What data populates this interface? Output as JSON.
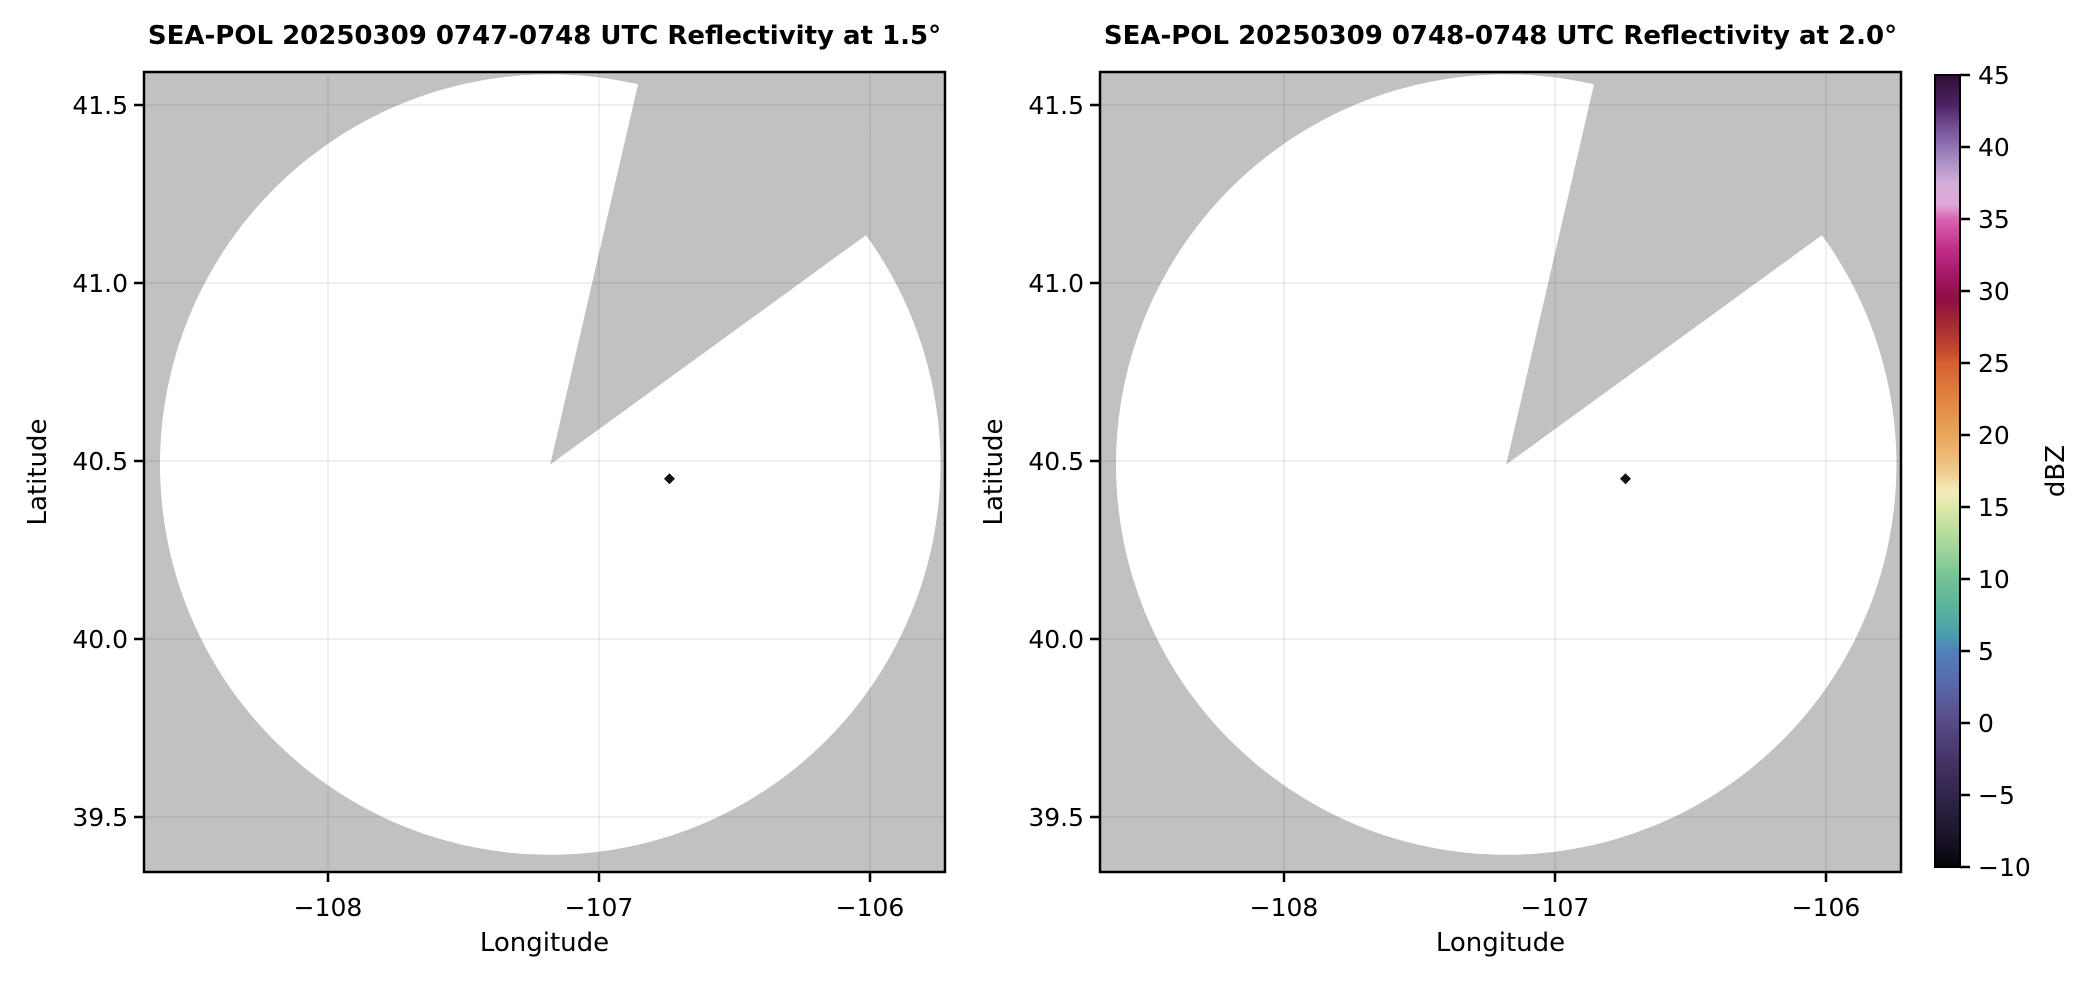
{
  "figure": {
    "background": "#ffffff",
    "panel_bg": "#c1c1c1",
    "scan_fill": "#ffffff",
    "frame_color": "#000000",
    "grid_color": "rgba(0,0,0,0.08)",
    "marker_color": "#111111"
  },
  "chart_data": {
    "type": "radar_ppi_reflectivity",
    "panels": [
      {
        "title": "SEA-POL 20250309 0747-0748 UTC Reflectivity at 1.5°",
        "elevation_deg": 1.5,
        "xlabel": "Longitude",
        "ylabel": "Latitude",
        "xlim": [
          -108.68,
          -105.72
        ],
        "ylim": [
          39.35,
          41.59
        ],
        "x_tick_labels": [
          "−108",
          "−107",
          "−106"
        ],
        "x_tick_values": [
          -108,
          -107,
          -106
        ],
        "y_tick_labels": [
          "41.5",
          "41.0",
          "40.5",
          "40.0",
          "39.5"
        ],
        "y_tick_values": [
          41.5,
          41.0,
          40.5,
          40.0,
          39.5
        ],
        "radar_center": {
          "lon": -107.18,
          "lat": 40.49
        },
        "scan_radius_deg": {
          "lon": 1.44,
          "lat": 1.09
        },
        "blocked_sector_azimuth_deg": [
          13,
          54
        ],
        "echo_marker": {
          "lon": -106.74,
          "lat": 40.45,
          "shape": "diamond",
          "color": "#111111"
        }
      },
      {
        "title": "SEA-POL 20250309 0748-0748 UTC Reflectivity at 2.0°",
        "elevation_deg": 2.0,
        "xlabel": "Longitude",
        "ylabel": "Latitude",
        "xlim": [
          -108.68,
          -105.72
        ],
        "ylim": [
          39.35,
          41.59
        ],
        "x_tick_labels": [
          "−108",
          "−107",
          "−106"
        ],
        "x_tick_values": [
          -108,
          -107,
          -106
        ],
        "y_tick_labels": [
          "41.5",
          "41.0",
          "40.5",
          "40.0",
          "39.5"
        ],
        "y_tick_values": [
          41.5,
          41.0,
          40.5,
          40.0,
          39.5
        ],
        "radar_center": {
          "lon": -107.18,
          "lat": 40.49
        },
        "scan_radius_deg": {
          "lon": 1.44,
          "lat": 1.09
        },
        "blocked_sector_azimuth_deg": [
          13,
          54
        ],
        "echo_marker": {
          "lon": -106.74,
          "lat": 40.45,
          "shape": "diamond",
          "color": "#111111"
        }
      }
    ],
    "colorbar": {
      "label": "dBZ",
      "range": [
        -10,
        45
      ],
      "tick_labels": [
        "45",
        "40",
        "35",
        "30",
        "25",
        "20",
        "15",
        "10",
        "5",
        "0",
        "−5",
        "−10"
      ],
      "tick_values": [
        45,
        40,
        35,
        30,
        25,
        20,
        15,
        10,
        5,
        0,
        -5,
        -10
      ],
      "stops": [
        {
          "value": 45,
          "color": "#2e0f35"
        },
        {
          "value": 43,
          "color": "#4a2260"
        },
        {
          "value": 41,
          "color": "#7c58a0"
        },
        {
          "value": 39,
          "color": "#a98fc4"
        },
        {
          "value": 37.5,
          "color": "#d2aed9"
        },
        {
          "value": 36,
          "color": "#dfa8d8"
        },
        {
          "value": 35,
          "color": "#d965b3"
        },
        {
          "value": 33,
          "color": "#c22e8c"
        },
        {
          "value": 31,
          "color": "#a31763"
        },
        {
          "value": 29.5,
          "color": "#8e0f48"
        },
        {
          "value": 28,
          "color": "#a02433"
        },
        {
          "value": 26,
          "color": "#c2472f"
        },
        {
          "value": 25,
          "color": "#d55f31"
        },
        {
          "value": 22.5,
          "color": "#e0853f"
        },
        {
          "value": 20,
          "color": "#e8a55b"
        },
        {
          "value": 17.5,
          "color": "#efca8c"
        },
        {
          "value": 16,
          "color": "#f5edbb"
        },
        {
          "value": 15,
          "color": "#dde8a7"
        },
        {
          "value": 12.5,
          "color": "#a9d89c"
        },
        {
          "value": 10,
          "color": "#72c295"
        },
        {
          "value": 7.5,
          "color": "#55ae9f"
        },
        {
          "value": 6,
          "color": "#4b9bae"
        },
        {
          "value": 5,
          "color": "#5081ba"
        },
        {
          "value": 2.5,
          "color": "#5b66a8"
        },
        {
          "value": 0,
          "color": "#574a86"
        },
        {
          "value": -2.5,
          "color": "#453467"
        },
        {
          "value": -5,
          "color": "#32254a"
        },
        {
          "value": -7.5,
          "color": "#1e162e"
        },
        {
          "value": -10,
          "color": "#070409"
        }
      ]
    }
  }
}
